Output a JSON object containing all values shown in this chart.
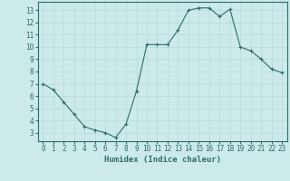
{
  "x": [
    0,
    1,
    2,
    3,
    4,
    5,
    6,
    7,
    8,
    9,
    10,
    11,
    12,
    13,
    14,
    15,
    16,
    17,
    18,
    19,
    20,
    21,
    22,
    23
  ],
  "y": [
    7,
    6.5,
    5.5,
    4.5,
    3.5,
    3.2,
    3.0,
    2.6,
    3.7,
    6.4,
    10.2,
    10.2,
    10.2,
    11.4,
    13.0,
    13.2,
    13.2,
    12.5,
    13.1,
    10.0,
    9.7,
    9.0,
    8.2,
    7.9
  ],
  "line_color": "#2e6b6b",
  "marker": "+",
  "marker_size": 3,
  "bg_color": "#cceaea",
  "grid_color": "#b8d8d8",
  "xlabel": "Humidex (Indice chaleur)",
  "ylim": [
    2.3,
    13.7
  ],
  "xlim": [
    -0.5,
    23.5
  ],
  "yticks": [
    3,
    4,
    5,
    6,
    7,
    8,
    9,
    10,
    11,
    12,
    13
  ],
  "xticks": [
    0,
    1,
    2,
    3,
    4,
    5,
    6,
    7,
    8,
    9,
    10,
    11,
    12,
    13,
    14,
    15,
    16,
    17,
    18,
    19,
    20,
    21,
    22,
    23
  ],
  "xlabel_fontsize": 6.5,
  "tick_fontsize": 5.5
}
